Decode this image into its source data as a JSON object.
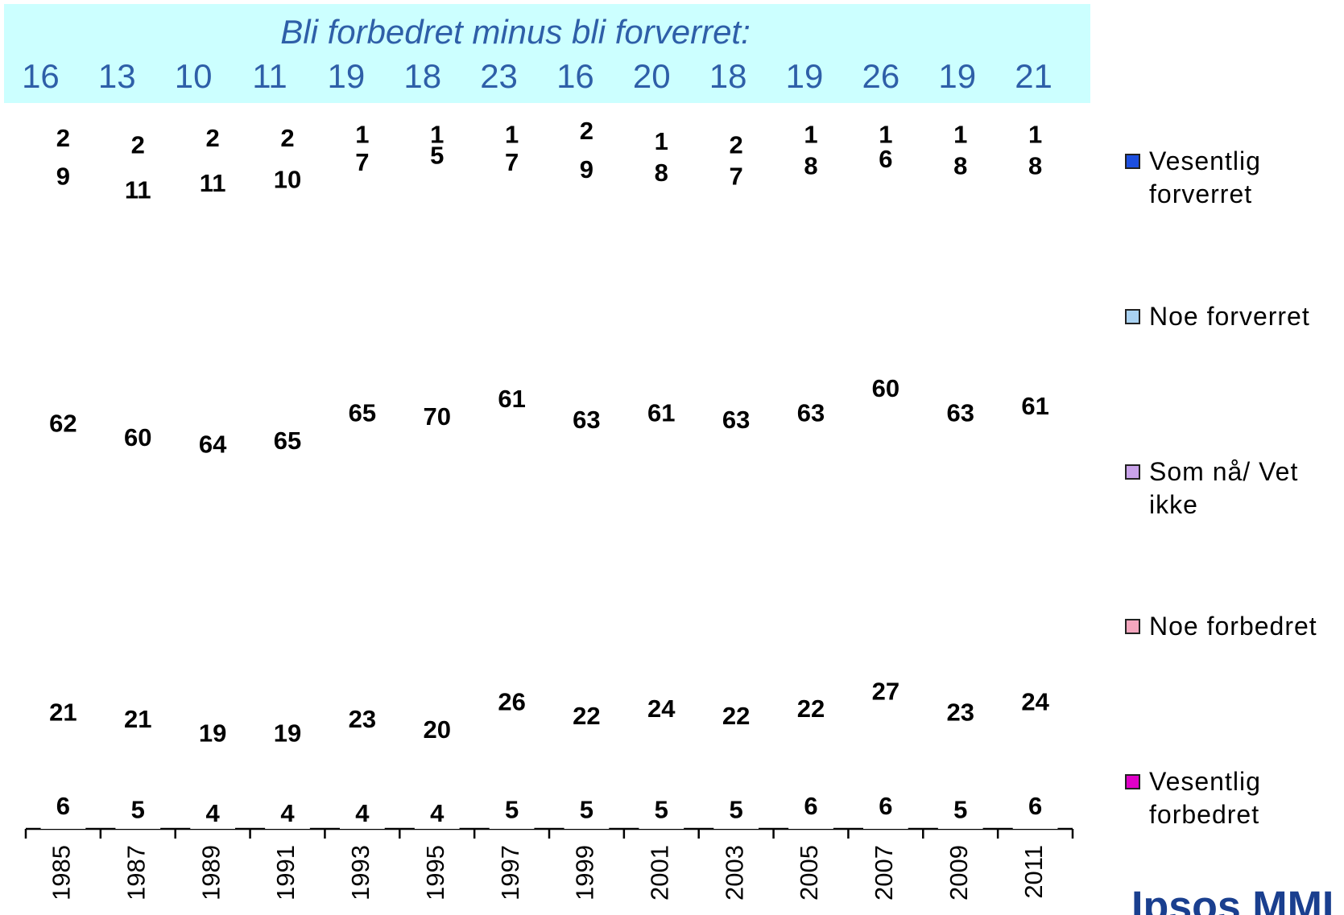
{
  "chart_data": {
    "type": "stacked-bar",
    "banner_title": "Bli forbedret minus bli forverret:",
    "banner_values": [
      16,
      13,
      10,
      11,
      19,
      18,
      23,
      16,
      20,
      18,
      19,
      26,
      19,
      21
    ],
    "categories": [
      "1985",
      "1987",
      "1989",
      "1991",
      "1993",
      "1995",
      "1997",
      "1999",
      "2001",
      "2003",
      "2005",
      "2007",
      "2009",
      "2011"
    ],
    "series": [
      {
        "name": "Vesentlig forbedret",
        "color": "#e000c8",
        "values": [
          6,
          5,
          4,
          4,
          4,
          4,
          5,
          5,
          5,
          5,
          6,
          6,
          5,
          6
        ]
      },
      {
        "name": "Noe forbedret",
        "color": "#f4a6be",
        "values": [
          21,
          21,
          19,
          19,
          23,
          20,
          26,
          22,
          24,
          22,
          22,
          27,
          23,
          24
        ]
      },
      {
        "name": "Som nå/ Vet ikke",
        "color": "#c9a2ea",
        "values": [
          62,
          60,
          64,
          65,
          65,
          70,
          61,
          63,
          61,
          63,
          63,
          60,
          63,
          61
        ]
      },
      {
        "name": "Noe forverret",
        "color": "#a9d2f2",
        "values": [
          9,
          11,
          11,
          10,
          7,
          5,
          7,
          9,
          8,
          7,
          8,
          6,
          8,
          8
        ]
      },
      {
        "name": "Vesentlig forverret",
        "color": "#1d4fe0",
        "values": [
          2,
          2,
          2,
          2,
          1,
          1,
          1,
          2,
          1,
          2,
          1,
          1,
          1,
          1
        ]
      }
    ],
    "logo": "Ipsos MMI"
  }
}
